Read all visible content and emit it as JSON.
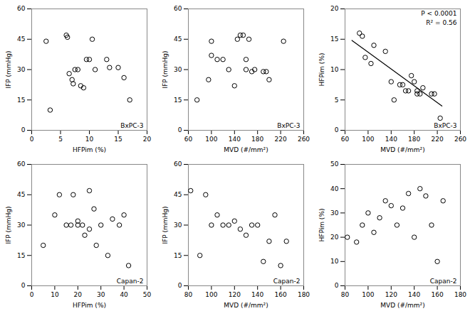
{
  "chart_data": [
    {
      "type": "scatter",
      "xlabel": "HFPim (%)",
      "ylabel": "IFP (mmHg)",
      "label": "BxPC-3",
      "xlim": [
        0,
        20
      ],
      "ylim": [
        0,
        60
      ],
      "xticks": [
        0,
        5,
        10,
        15,
        20
      ],
      "yticks": [
        0,
        15,
        30,
        45,
        60
      ],
      "series": [
        {
          "type": "scatter",
          "marker": "open circle",
          "color": "black",
          "x": [
            2.5,
            3.2,
            6.0,
            6.2,
            6.5,
            7.0,
            7.2,
            7.5,
            8.0,
            8.5,
            9.0,
            9.5,
            10.0,
            10.5,
            11.0,
            13.0,
            13.5,
            15.0,
            16.0,
            17.0
          ],
          "values": [
            44,
            10,
            47,
            46,
            28,
            25,
            23,
            30,
            30,
            22,
            21,
            35,
            35,
            45,
            30,
            35,
            31,
            31,
            26,
            15
          ]
        }
      ]
    },
    {
      "type": "scatter",
      "xlabel": "MVD (#/mm²)",
      "ylabel": "IFP (mmHg)",
      "label": "BxPC-3",
      "xlim": [
        60,
        260
      ],
      "ylim": [
        0,
        60
      ],
      "xticks": [
        60,
        100,
        140,
        180,
        220,
        260
      ],
      "yticks": [
        0,
        15,
        30,
        45,
        60
      ],
      "series": [
        {
          "type": "scatter",
          "marker": "open circle",
          "color": "black",
          "x": [
            75,
            95,
            100,
            100,
            110,
            120,
            130,
            140,
            145,
            150,
            155,
            160,
            160,
            165,
            170,
            175,
            190,
            195,
            200,
            225
          ],
          "values": [
            15,
            25,
            37,
            44,
            35,
            35,
            30,
            22,
            45,
            47,
            47,
            30,
            35,
            45,
            29,
            30,
            29,
            29,
            25,
            44
          ]
        }
      ]
    },
    {
      "type": "scatter",
      "xlabel": "MVD (#/mm²)",
      "ylabel": "HFPim (%)",
      "label": "BxPC-3",
      "annotations": [
        "P < 0.0001",
        "R² = 0.56"
      ],
      "xlim": [
        60,
        260
      ],
      "ylim": [
        0,
        20
      ],
      "xticks": [
        60,
        100,
        140,
        180,
        220,
        260
      ],
      "yticks": [
        0,
        5,
        10,
        15,
        20
      ],
      "series": [
        {
          "type": "scatter",
          "marker": "open circle",
          "color": "black",
          "x": [
            85,
            90,
            95,
            105,
            110,
            130,
            140,
            145,
            155,
            160,
            165,
            170,
            175,
            180,
            185,
            185,
            190,
            195,
            210,
            215,
            225
          ],
          "values": [
            16,
            15.5,
            12,
            11,
            14,
            13,
            8,
            5,
            7.5,
            7.5,
            6.5,
            6.5,
            9,
            8,
            6,
            6.5,
            6,
            7,
            6,
            6,
            2
          ]
        },
        {
          "type": "line",
          "line_style": "solid",
          "color": "black",
          "x": [
            72,
            228
          ],
          "values": [
            14.8,
            4.0
          ]
        }
      ]
    },
    {
      "type": "scatter",
      "xlabel": "HFPim (%)",
      "ylabel": "IFP (mmHg)",
      "label": "Capan-2",
      "xlim": [
        0,
        50
      ],
      "ylim": [
        0,
        60
      ],
      "xticks": [
        0,
        10,
        20,
        30,
        40,
        50
      ],
      "yticks": [
        0,
        15,
        30,
        45,
        60
      ],
      "series": [
        {
          "type": "scatter",
          "marker": "open circle",
          "color": "black",
          "x": [
            5,
            10,
            12,
            15,
            17,
            18,
            20,
            20,
            22,
            23,
            25,
            25,
            27,
            28,
            30,
            33,
            35,
            38,
            40,
            42
          ],
          "values": [
            20,
            35,
            45,
            30,
            30,
            45,
            30,
            32,
            30,
            25,
            28,
            47,
            38,
            20,
            30,
            15,
            33,
            30,
            35,
            10
          ]
        }
      ]
    },
    {
      "type": "scatter",
      "xlabel": "MVD (#/mm²)",
      "ylabel": "IFP (mmHg)",
      "label": "Capan-2",
      "xlim": [
        80,
        180
      ],
      "ylim": [
        0,
        60
      ],
      "xticks": [
        80,
        100,
        120,
        140,
        160,
        180
      ],
      "yticks": [
        0,
        15,
        30,
        45,
        60
      ],
      "series": [
        {
          "type": "scatter",
          "marker": "open circle",
          "color": "black",
          "x": [
            82,
            90,
            95,
            100,
            105,
            110,
            115,
            120,
            125,
            130,
            135,
            140,
            145,
            150,
            155,
            160,
            165
          ],
          "values": [
            47,
            15,
            45,
            30,
            35,
            30,
            30,
            32,
            28,
            25,
            30,
            30,
            12,
            22,
            35,
            10,
            22
          ]
        }
      ]
    },
    {
      "type": "scatter",
      "xlabel": "MVD (#/mm²)",
      "ylabel": "HFPim (%)",
      "label": "Capan-2",
      "xlim": [
        80,
        180
      ],
      "ylim": [
        0,
        50
      ],
      "xticks": [
        80,
        100,
        120,
        140,
        160,
        180
      ],
      "yticks": [
        0,
        10,
        20,
        30,
        40,
        50
      ],
      "series": [
        {
          "type": "scatter",
          "marker": "open circle",
          "color": "black",
          "x": [
            82,
            90,
            95,
            100,
            105,
            110,
            115,
            120,
            125,
            130,
            135,
            140,
            145,
            150,
            155,
            160,
            165
          ],
          "values": [
            20,
            18,
            25,
            30,
            22,
            28,
            35,
            33,
            25,
            32,
            38,
            20,
            40,
            37,
            25,
            10,
            35
          ]
        }
      ]
    }
  ]
}
